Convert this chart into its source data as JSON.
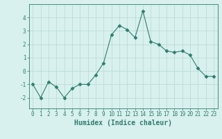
{
  "x": [
    0,
    1,
    2,
    3,
    4,
    5,
    6,
    7,
    8,
    9,
    10,
    11,
    12,
    13,
    14,
    15,
    16,
    17,
    18,
    19,
    20,
    21,
    22,
    23
  ],
  "y": [
    -1.0,
    -2.0,
    -0.8,
    -1.2,
    -2.0,
    -1.3,
    -1.0,
    -1.0,
    -0.3,
    0.6,
    2.7,
    3.4,
    3.1,
    2.5,
    4.5,
    2.2,
    2.0,
    1.5,
    1.4,
    1.5,
    1.2,
    0.2,
    -0.4,
    -0.4
  ],
  "line_color": "#2e7d6e",
  "marker": "D",
  "markersize": 2.5,
  "linewidth": 0.8,
  "bg_color": "#d8f0ee",
  "grid_color": "#b8d8d4",
  "xlabel": "Humidex (Indice chaleur)",
  "xlim": [
    -0.5,
    23.5
  ],
  "ylim": [
    -2.8,
    5.0
  ],
  "yticks": [
    -2,
    -1,
    0,
    1,
    2,
    3,
    4
  ],
  "xticks": [
    0,
    1,
    2,
    3,
    4,
    5,
    6,
    7,
    8,
    9,
    10,
    11,
    12,
    13,
    14,
    15,
    16,
    17,
    18,
    19,
    20,
    21,
    22,
    23
  ],
  "tick_label_fontsize": 5.5,
  "xlabel_fontsize": 7.0,
  "tick_color": "#2e7d6e"
}
